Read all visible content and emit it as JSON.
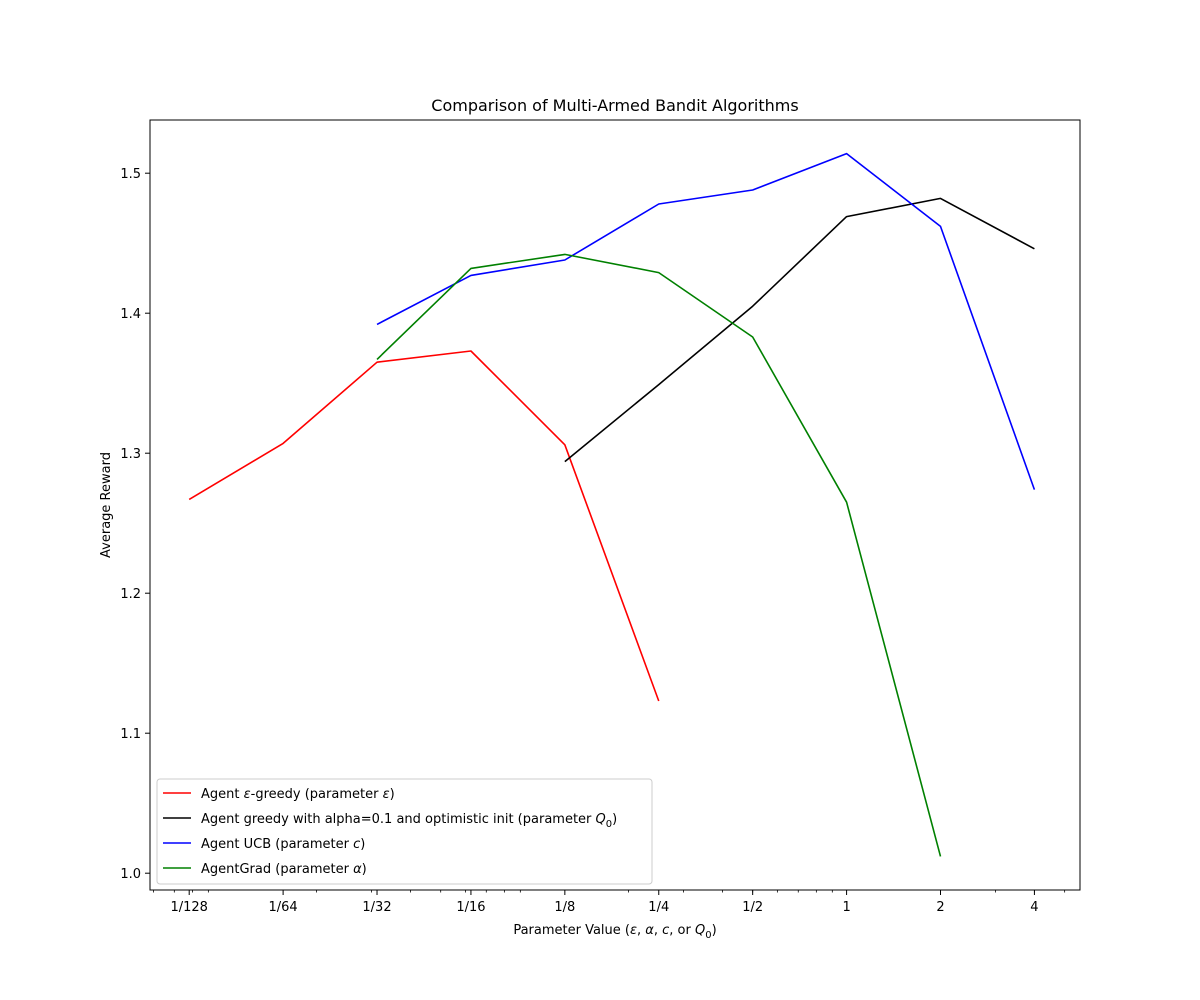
{
  "chart_data": {
    "type": "line",
    "title": "Comparison of Multi-Armed Bandit Algorithms",
    "xlabel_parts": [
      "Parameter Value (",
      "ε",
      ", ",
      "α",
      ", ",
      "c",
      ", or ",
      "Q",
      "0",
      ")"
    ],
    "ylabel": "Average Reward",
    "x_scale": "log2",
    "xlim": [
      0.00585,
      5.6
    ],
    "ylim": [
      0.988,
      1.538
    ],
    "x_ticks": [
      0.0078125,
      0.015625,
      0.03125,
      0.0625,
      0.125,
      0.25,
      0.5,
      1,
      2,
      4
    ],
    "x_tick_labels": [
      "1/128",
      "1/64",
      "1/32",
      "1/16",
      "1/8",
      "1/4",
      "1/2",
      "1",
      "2",
      "4"
    ],
    "y_ticks": [
      1.0,
      1.1,
      1.2,
      1.3,
      1.4,
      1.5
    ],
    "y_tick_labels": [
      "1.0",
      "1.1",
      "1.2",
      "1.3",
      "1.4",
      "1.5"
    ],
    "grid": false,
    "legend_position": "lower-left",
    "series": [
      {
        "legend": [
          {
            "text": "Agent "
          },
          {
            "text": "ε",
            "style": "italic"
          },
          {
            "text": "-greedy (parameter "
          },
          {
            "text": "ε",
            "style": "italic"
          },
          {
            "text": ")"
          }
        ],
        "color": "#ff0000",
        "x": [
          0.0078125,
          0.015625,
          0.03125,
          0.0625,
          0.125,
          0.25
        ],
        "y": [
          1.267,
          1.307,
          1.365,
          1.373,
          1.306,
          1.123
        ]
      },
      {
        "legend": [
          {
            "text": "Agent greedy with alpha=0.1 and optimistic init (parameter "
          },
          {
            "text": "Q",
            "style": "italic"
          },
          {
            "text": "0",
            "style": "sub"
          },
          {
            "text": ")"
          }
        ],
        "color": "#000000",
        "x": [
          0.125,
          0.25,
          0.5,
          1,
          2,
          4
        ],
        "y": [
          1.294,
          1.349,
          1.405,
          1.469,
          1.482,
          1.446
        ]
      },
      {
        "legend": [
          {
            "text": "Agent UCB (parameter "
          },
          {
            "text": "c",
            "style": "italic"
          },
          {
            "text": ")"
          }
        ],
        "color": "#0000ff",
        "x": [
          0.03125,
          0.0625,
          0.125,
          0.25,
          0.5,
          1,
          2,
          4
        ],
        "y": [
          1.392,
          1.427,
          1.438,
          1.478,
          1.488,
          1.514,
          1.462,
          1.274
        ]
      },
      {
        "legend": [
          {
            "text": "AgentGrad (parameter "
          },
          {
            "text": "α",
            "style": "italic"
          },
          {
            "text": ")"
          }
        ],
        "color": "#008000",
        "x": [
          0.03125,
          0.0625,
          0.125,
          0.25,
          0.5,
          1,
          2
        ],
        "y": [
          1.367,
          1.432,
          1.442,
          1.429,
          1.383,
          1.265,
          1.012
        ]
      }
    ]
  }
}
